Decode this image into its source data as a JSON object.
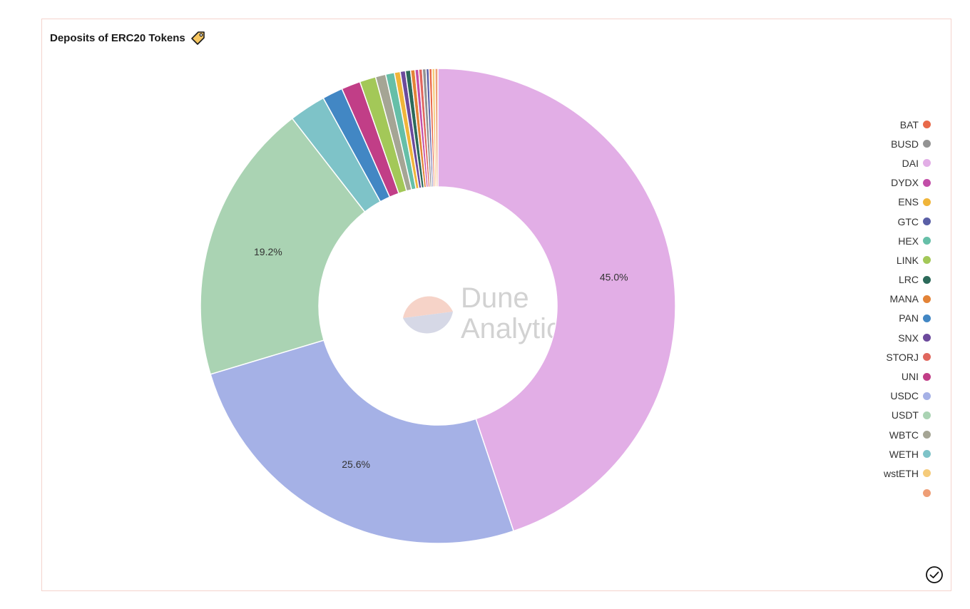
{
  "header": {
    "title": "Deposits of ERC20 Tokens",
    "title_icon": "tag-icon"
  },
  "watermark": {
    "line1": "Dune",
    "line2": "Analytics"
  },
  "colors": {
    "BAT": "#e8694a",
    "BUSD": "#939393",
    "DAI": "#e2aee6",
    "DYDX": "#c24ea8",
    "ENS": "#f0b53a",
    "GTC": "#5a5fa6",
    "HEX": "#66bfa8",
    "LINK": "#a3c858",
    "LRC": "#2c6a5a",
    "MANA": "#e38337",
    "PAN": "#4287c4",
    "SNX": "#6c4a9c",
    "STORJ": "#e0675e",
    "UNI": "#c13e87",
    "USDC": "#a5b1e6",
    "USDT": "#aad3b3",
    "WBTC": "#a5a595",
    "WETH": "#7ec3c8",
    "wstETH": "#f5cb7a",
    "other": "#ee9e76"
  },
  "chart_data": {
    "type": "pie",
    "donut": true,
    "title": "Deposits of ERC20 Tokens",
    "slices": [
      {
        "label": "DAI",
        "value": 45.0,
        "color_key": "DAI"
      },
      {
        "label": "USDC",
        "value": 25.6,
        "color_key": "USDC"
      },
      {
        "label": "USDT",
        "value": 19.2,
        "color_key": "USDT"
      },
      {
        "label": "WETH",
        "value": 2.5,
        "color_key": "WETH"
      },
      {
        "label": "PAN",
        "value": 1.4,
        "color_key": "PAN"
      },
      {
        "label": "UNI",
        "value": 1.3,
        "color_key": "UNI"
      },
      {
        "label": "LINK",
        "value": 1.1,
        "color_key": "LINK"
      },
      {
        "label": "WBTC",
        "value": 0.7,
        "color_key": "WBTC"
      },
      {
        "label": "HEX",
        "value": 0.6,
        "color_key": "HEX"
      },
      {
        "label": "ENS",
        "value": 0.4,
        "color_key": "ENS"
      },
      {
        "label": "SNX",
        "value": 0.35,
        "color_key": "SNX"
      },
      {
        "label": "LRC",
        "value": 0.35,
        "color_key": "LRC"
      },
      {
        "label": "MANA",
        "value": 0.3,
        "color_key": "MANA"
      },
      {
        "label": "DYDX",
        "value": 0.25,
        "color_key": "DYDX"
      },
      {
        "label": "STORJ",
        "value": 0.25,
        "color_key": "STORJ"
      },
      {
        "label": "BUSD",
        "value": 0.25,
        "color_key": "BUSD"
      },
      {
        "label": "GTC",
        "value": 0.2,
        "color_key": "GTC"
      },
      {
        "label": "BAT",
        "value": 0.2,
        "color_key": "BAT"
      },
      {
        "label": "wstETH",
        "value": 0.2,
        "color_key": "wstETH"
      },
      {
        "label": "",
        "value": 0.2,
        "color_key": "other"
      }
    ],
    "data_labels": [
      {
        "slice": "DAI",
        "text": "45.0%"
      },
      {
        "slice": "USDC",
        "text": "25.6%"
      },
      {
        "slice": "USDT",
        "text": "19.2%"
      }
    ],
    "legend": {
      "placement": "right",
      "items": [
        {
          "label": "BAT",
          "color_key": "BAT"
        },
        {
          "label": "BUSD",
          "color_key": "BUSD"
        },
        {
          "label": "DAI",
          "color_key": "DAI"
        },
        {
          "label": "DYDX",
          "color_key": "DYDX"
        },
        {
          "label": "ENS",
          "color_key": "ENS"
        },
        {
          "label": "GTC",
          "color_key": "GTC"
        },
        {
          "label": "HEX",
          "color_key": "HEX"
        },
        {
          "label": "LINK",
          "color_key": "LINK"
        },
        {
          "label": "LRC",
          "color_key": "LRC"
        },
        {
          "label": "MANA",
          "color_key": "MANA"
        },
        {
          "label": "PAN",
          "color_key": "PAN"
        },
        {
          "label": "SNX",
          "color_key": "SNX"
        },
        {
          "label": "STORJ",
          "color_key": "STORJ"
        },
        {
          "label": "UNI",
          "color_key": "UNI"
        },
        {
          "label": "USDC",
          "color_key": "USDC"
        },
        {
          "label": "USDT",
          "color_key": "USDT"
        },
        {
          "label": "WBTC",
          "color_key": "WBTC"
        },
        {
          "label": "WETH",
          "color_key": "WETH"
        },
        {
          "label": "wstETH",
          "color_key": "wstETH"
        },
        {
          "label": "",
          "color_key": "other"
        }
      ]
    }
  },
  "footer": {
    "status_icon": "check-circle-icon"
  }
}
